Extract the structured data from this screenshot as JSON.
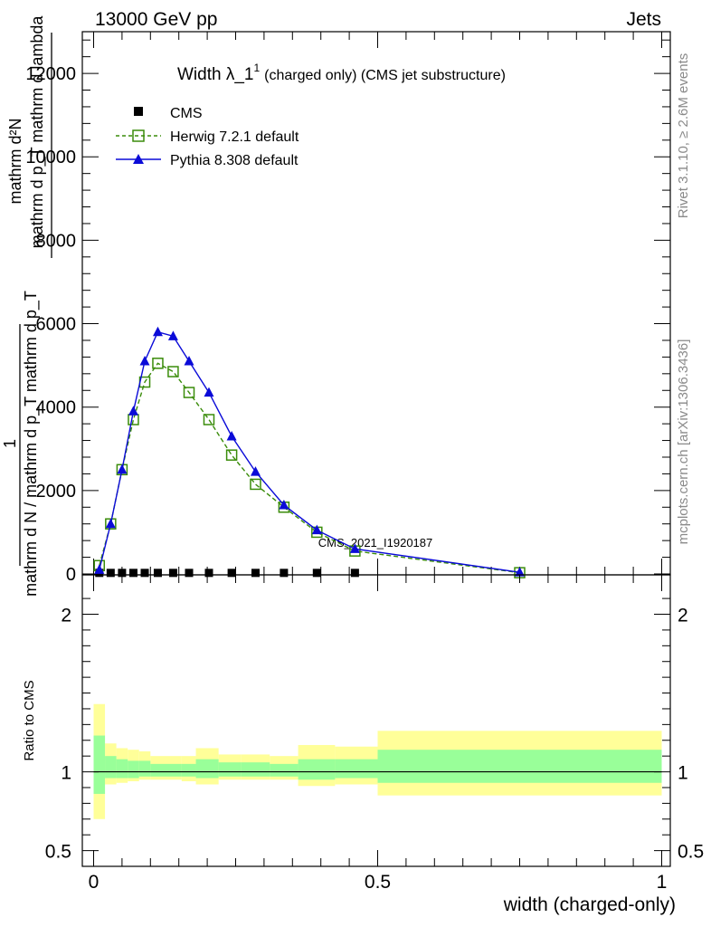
{
  "header": {
    "left": "13000 GeV pp",
    "right": "Jets"
  },
  "side": {
    "rivet": "Rivet 3.1.10, ≥ 2.6M events",
    "mcplots": "mcplots.cern.ch [arXiv:1306.3436]"
  },
  "watermark": "CMS_2021_I1920187",
  "chart_data": [
    {
      "type": "line",
      "title": "Width λ_1",
      "title_sup": "1",
      "subtitle": "(charged only) (CMS jet substructure)",
      "ylabel_top": "mathrm d²N",
      "ylabel_top2": "mathrm d p_T mathrm d lambda",
      "ylabel_one": "1",
      "ylabel_bottom": "mathrm d N / mathrm d p_T mathrm d p_T",
      "xlim": [
        0,
        1
      ],
      "ylim": [
        0,
        13000
      ],
      "yticks": [
        0,
        2000,
        4000,
        6000,
        8000,
        10000,
        12000
      ],
      "ytick_labels": [
        "0",
        "2000",
        "4000",
        "6000",
        "8000",
        "10000",
        "12000"
      ],
      "legend": {
        "placement": "top-left",
        "entries": [
          "CMS",
          "Herwig 7.2.1 default",
          "Pythia 8.308 default"
        ]
      },
      "series": [
        {
          "name": "CMS",
          "color": "#000000",
          "marker": "square",
          "x": [
            0.01,
            0.03,
            0.05,
            0.07,
            0.09,
            0.113,
            0.14,
            0.168,
            0.203,
            0.243,
            0.285,
            0.335,
            0.393,
            0.46
          ],
          "y": [
            25,
            25,
            25,
            25,
            25,
            25,
            25,
            25,
            25,
            25,
            25,
            25,
            25,
            25
          ]
        },
        {
          "name": "Herwig 7.2.1 default",
          "color": "#3a8c0a",
          "marker": "open-square",
          "dash": true,
          "x": [
            0.01,
            0.03,
            0.05,
            0.07,
            0.09,
            0.113,
            0.14,
            0.168,
            0.203,
            0.243,
            0.285,
            0.335,
            0.393,
            0.46,
            0.75
          ],
          "y": [
            200,
            1200,
            2500,
            3700,
            4600,
            5050,
            4850,
            4350,
            3700,
            2850,
            2150,
            1600,
            1000,
            550,
            30
          ]
        },
        {
          "name": "Pythia 8.308 default",
          "color": "#0b0bd8",
          "marker": "triangle",
          "x": [
            0.01,
            0.03,
            0.05,
            0.07,
            0.09,
            0.113,
            0.14,
            0.168,
            0.203,
            0.243,
            0.285,
            0.335,
            0.393,
            0.46,
            0.75
          ],
          "y": [
            100,
            1200,
            2500,
            3900,
            5100,
            5800,
            5700,
            5100,
            4350,
            3300,
            2450,
            1650,
            1050,
            600,
            40
          ]
        }
      ]
    },
    {
      "type": "area",
      "ylabel": "Ratio to CMS",
      "xlabel": "width (charged-only)",
      "xlim": [
        0,
        1
      ],
      "ylim": [
        0.4,
        2.25
      ],
      "yticks": [
        0.5,
        1,
        2
      ],
      "ytick_labels": [
        "0.5",
        "1",
        "2"
      ],
      "xticks": [
        0,
        0.5,
        1
      ],
      "xtick_labels": [
        "0",
        "0.5",
        "1"
      ],
      "bands": {
        "edges": [
          0,
          0.02,
          0.04,
          0.06,
          0.08,
          0.1,
          0.125,
          0.155,
          0.18,
          0.22,
          0.26,
          0.31,
          0.36,
          0.425,
          0.5,
          1.0
        ],
        "yellow_lo": [
          0.7,
          0.92,
          0.93,
          0.94,
          0.95,
          0.95,
          0.95,
          0.94,
          0.92,
          0.95,
          0.95,
          0.95,
          0.91,
          0.92,
          0.85
        ],
        "yellow_hi": [
          1.43,
          1.18,
          1.15,
          1.14,
          1.13,
          1.1,
          1.1,
          1.1,
          1.15,
          1.11,
          1.11,
          1.1,
          1.17,
          1.16,
          1.26
        ],
        "green_lo": [
          0.86,
          0.96,
          0.96,
          0.96,
          0.97,
          0.97,
          0.97,
          0.97,
          0.96,
          0.97,
          0.97,
          0.97,
          0.95,
          0.96,
          0.93
        ],
        "green_hi": [
          1.23,
          1.1,
          1.08,
          1.07,
          1.07,
          1.05,
          1.05,
          1.05,
          1.08,
          1.06,
          1.06,
          1.05,
          1.08,
          1.08,
          1.14
        ],
        "yellow_color": "#ffff99",
        "green_color": "#99ff99"
      },
      "reference": 1
    }
  ]
}
